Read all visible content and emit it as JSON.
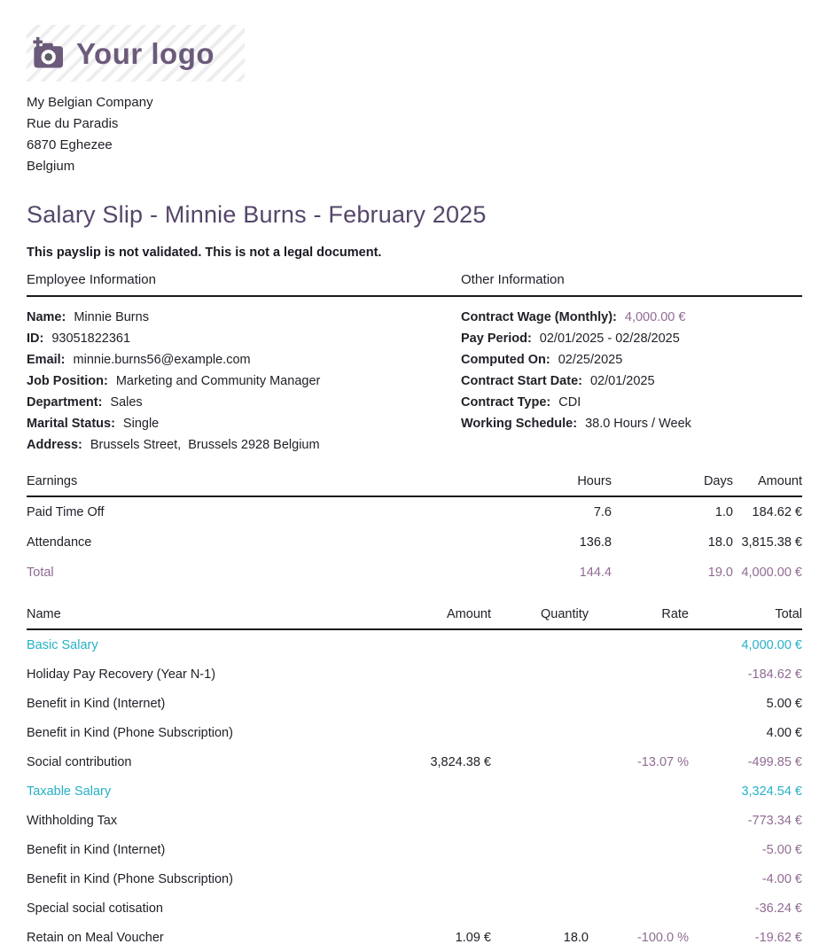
{
  "colors": {
    "brand": "#6b5a7a",
    "heading": "#554669",
    "mauve": "#906b93",
    "cyan": "#27b1c6"
  },
  "logo": {
    "text": "Your logo",
    "icon": "camera-plus-icon"
  },
  "company": {
    "lines": [
      "My Belgian Company",
      "Rue du Paradis",
      "6870 Eghezee",
      "Belgium"
    ]
  },
  "title": "Salary Slip - Minnie Burns - February 2025",
  "disclaimer": "This payslip is not validated. This is not a legal document.",
  "employee_info": {
    "heading": "Employee Information",
    "fields": [
      {
        "label": "Name:",
        "value": "Minnie Burns"
      },
      {
        "label": "ID:",
        "value": "93051822361"
      },
      {
        "label": "Email:",
        "value": "minnie.burns56@example.com"
      },
      {
        "label": "Job Position:",
        "value": "Marketing and Community Manager"
      },
      {
        "label": "Department:",
        "value": "Sales"
      },
      {
        "label": "Marital Status:",
        "value": "Single"
      },
      {
        "label": "Address:",
        "value": "Brussels Street,  Brussels 2928 Belgium"
      }
    ]
  },
  "other_info": {
    "heading": "Other Information",
    "fields": [
      {
        "label": "Contract Wage (Monthly):",
        "value": "4,000.00 €",
        "highlight": true
      },
      {
        "label": "Pay Period:",
        "value": "02/01/2025 - 02/28/2025"
      },
      {
        "label": "Computed On:",
        "value": "02/25/2025"
      },
      {
        "label": "Contract Start Date:",
        "value": "02/01/2025"
      },
      {
        "label": "Contract Type:",
        "value": "CDI"
      },
      {
        "label": "Working Schedule:",
        "value": "38.0 Hours / Week"
      }
    ]
  },
  "earnings_table": {
    "headers": [
      "Earnings",
      "Hours",
      "Days",
      "Amount"
    ],
    "rows": [
      {
        "name": "Paid Time Off",
        "hours": "7.6",
        "days": "1.0",
        "amount": "184.62 €",
        "style": "normal"
      },
      {
        "name": "Attendance",
        "hours": "136.8",
        "days": "18.0",
        "amount": "3,815.38 €",
        "style": "normal"
      },
      {
        "name": "Total",
        "hours": "144.4",
        "days": "19.0",
        "amount": "4,000.00 €",
        "style": "total"
      }
    ]
  },
  "salary_lines_table": {
    "headers": [
      "Name",
      "Amount",
      "Quantity",
      "Rate",
      "Total"
    ],
    "rows": [
      {
        "name": "Basic Salary",
        "amount": "",
        "quantity": "",
        "rate": "",
        "total": "4,000.00 €",
        "style": "subtotal"
      },
      {
        "name": "Holiday Pay Recovery (Year N-1)",
        "amount": "",
        "quantity": "",
        "rate": "",
        "total": "-184.62 €",
        "style": "normal"
      },
      {
        "name": "Benefit in Kind (Internet)",
        "amount": "",
        "quantity": "",
        "rate": "",
        "total": "5.00 €",
        "style": "normal"
      },
      {
        "name": "Benefit in Kind (Phone Subscription)",
        "amount": "",
        "quantity": "",
        "rate": "",
        "total": "4.00 €",
        "style": "normal"
      },
      {
        "name": "Social contribution",
        "amount": "3,824.38 €",
        "quantity": "",
        "rate": "-13.07 %",
        "total": "-499.85 €",
        "style": "normal"
      },
      {
        "name": "Taxable Salary",
        "amount": "",
        "quantity": "",
        "rate": "",
        "total": "3,324.54 €",
        "style": "subtotal"
      },
      {
        "name": "Withholding Tax",
        "amount": "",
        "quantity": "",
        "rate": "",
        "total": "-773.34 €",
        "style": "normal"
      },
      {
        "name": "Benefit in Kind (Internet)",
        "amount": "",
        "quantity": "",
        "rate": "",
        "total": "-5.00 €",
        "style": "normal"
      },
      {
        "name": "Benefit in Kind (Phone Subscription)",
        "amount": "",
        "quantity": "",
        "rate": "",
        "total": "-4.00 €",
        "style": "normal"
      },
      {
        "name": "Special social cotisation",
        "amount": "",
        "quantity": "",
        "rate": "",
        "total": "-36.24 €",
        "style": "normal"
      },
      {
        "name": "Retain on Meal Voucher",
        "amount": "1.09 €",
        "quantity": "18.0",
        "rate": "-100.0 %",
        "total": "-19.62 €",
        "style": "normal"
      }
    ]
  }
}
